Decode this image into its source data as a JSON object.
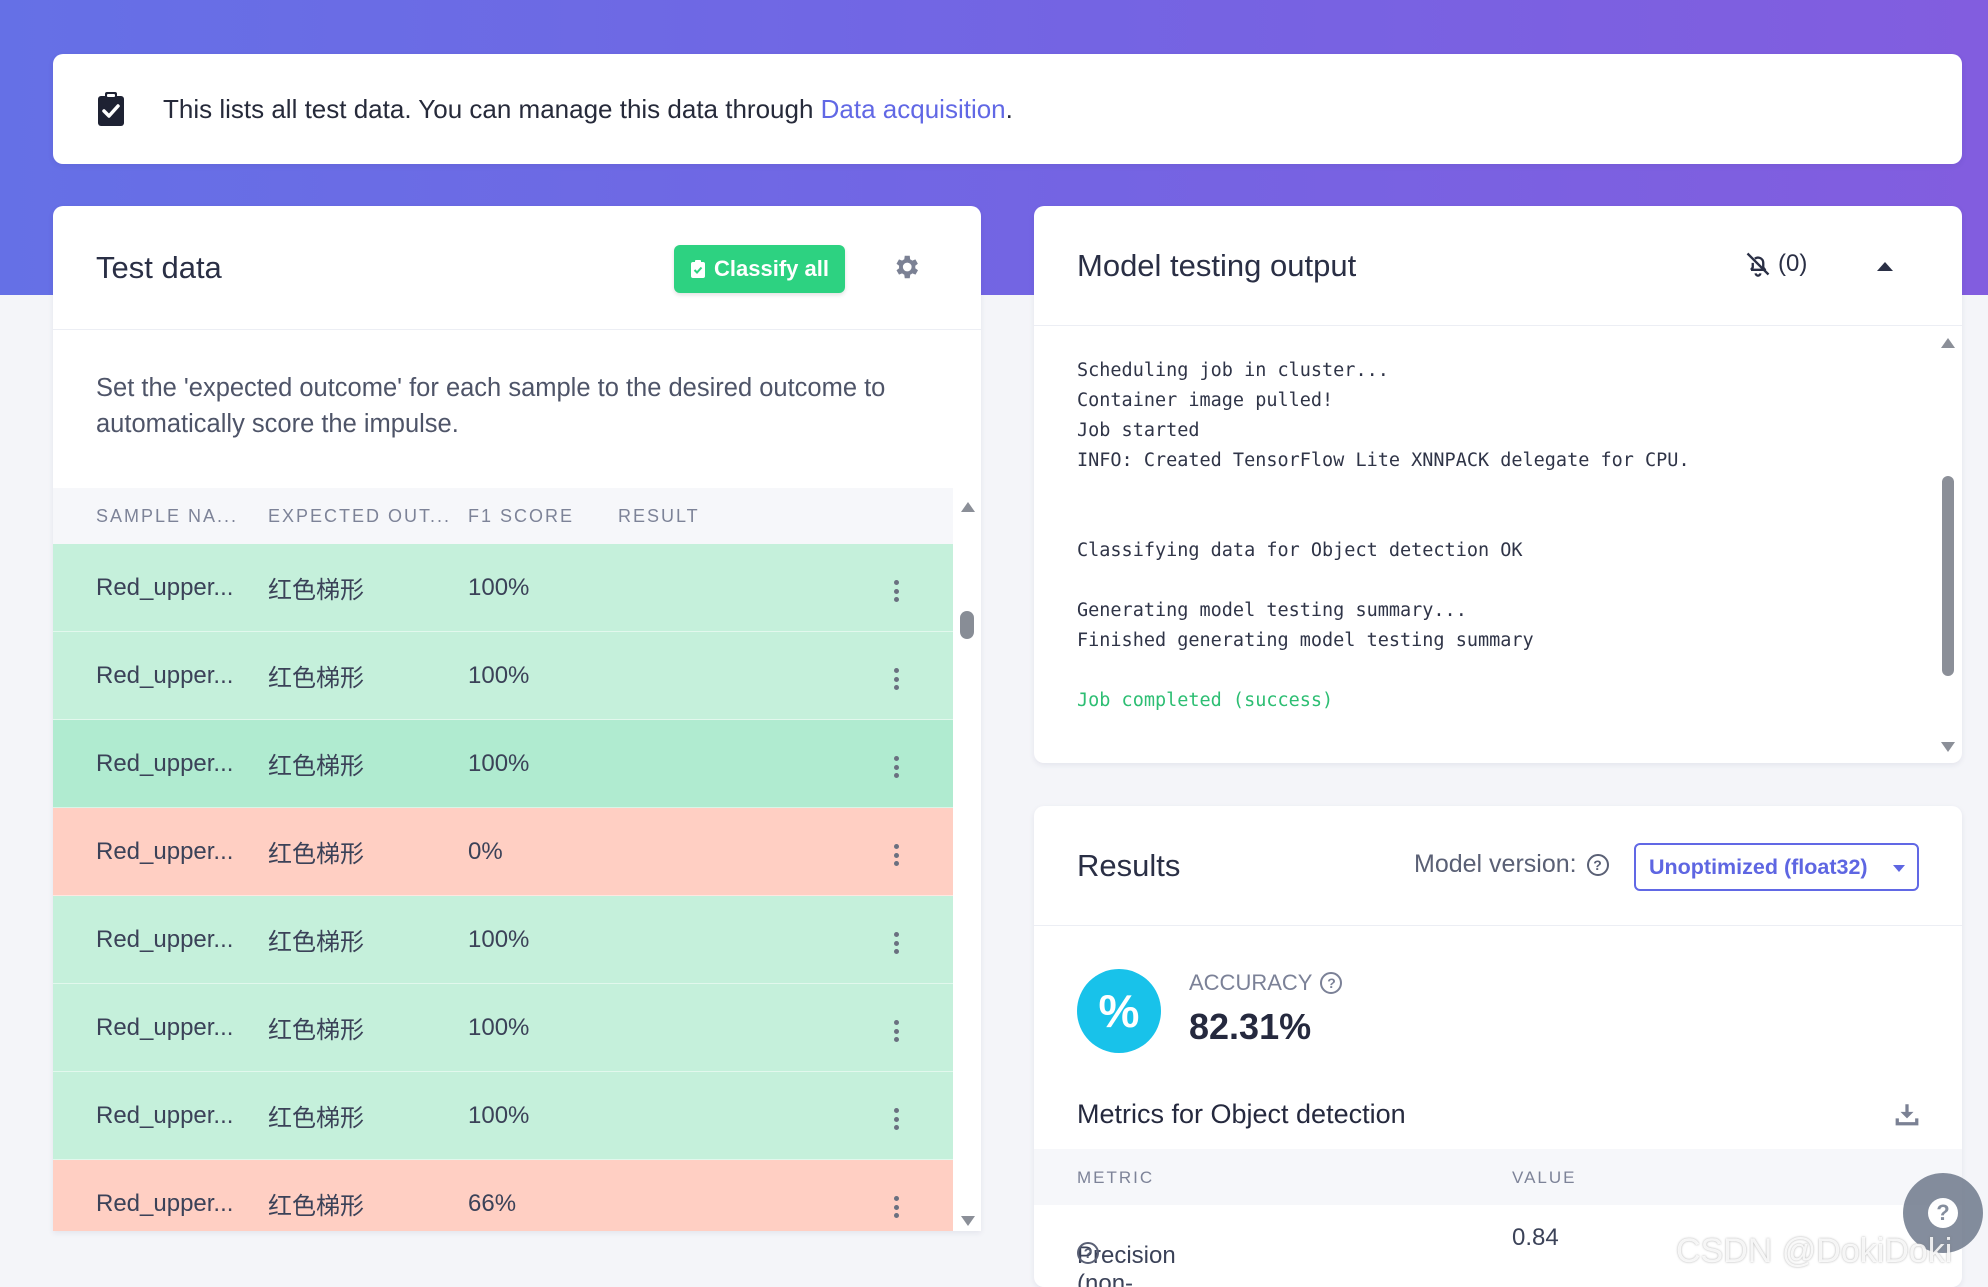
{
  "banner": {
    "text": "This lists all test data. You can manage this data through ",
    "link_label": "Data acquisition",
    "suffix": "."
  },
  "test_data": {
    "title": "Test data",
    "classify_label": "Classify all",
    "description": "Set the 'expected outcome' for each sample to the desired outcome to automatically score the impulse.",
    "columns": [
      "SAMPLE NA...",
      "EXPECTED OUT...",
      "F1 SCORE",
      "RESULT"
    ],
    "rows": [
      {
        "sample": "Red_upper...",
        "expected": "红色梯形",
        "f1": "100%",
        "status": "ok"
      },
      {
        "sample": "Red_upper...",
        "expected": "红色梯形",
        "f1": "100%",
        "status": "ok"
      },
      {
        "sample": "Red_upper...",
        "expected": "红色梯形",
        "f1": "100%",
        "status": "ok-hover"
      },
      {
        "sample": "Red_upper...",
        "expected": "红色梯形",
        "f1": "0%",
        "status": "bad"
      },
      {
        "sample": "Red_upper...",
        "expected": "红色梯形",
        "f1": "100%",
        "status": "ok"
      },
      {
        "sample": "Red_upper...",
        "expected": "红色梯形",
        "f1": "100%",
        "status": "ok"
      },
      {
        "sample": "Red_upper...",
        "expected": "红色梯形",
        "f1": "100%",
        "status": "ok"
      },
      {
        "sample": "Red_upper...",
        "expected": "红色梯形",
        "f1": "66%",
        "status": "bad"
      }
    ]
  },
  "model_output": {
    "title": "Model testing output",
    "notifications": "(0)",
    "log": [
      {
        "text": "Scheduling job in cluster...",
        "kind": "normal"
      },
      {
        "text": "Container image pulled!",
        "kind": "normal"
      },
      {
        "text": "Job started",
        "kind": "normal"
      },
      {
        "text": "INFO: Created TensorFlow Lite XNNPACK delegate for CPU.",
        "kind": "normal"
      },
      {
        "text": "",
        "kind": "normal"
      },
      {
        "text": "",
        "kind": "normal"
      },
      {
        "text": "Classifying data for Object detection OK",
        "kind": "normal"
      },
      {
        "text": "",
        "kind": "normal"
      },
      {
        "text": "Generating model testing summary...",
        "kind": "normal"
      },
      {
        "text": "Finished generating model testing summary",
        "kind": "normal"
      },
      {
        "text": "",
        "kind": "normal"
      },
      {
        "text": "Job completed (success)",
        "kind": "success"
      }
    ]
  },
  "results": {
    "title": "Results",
    "model_version_label": "Model version:",
    "model_version_value": "Unoptimized (float32)",
    "accuracy_label": "ACCURACY",
    "accuracy_value": "82.31%",
    "accuracy_icon": "%",
    "metrics_title": "Metrics for Object detection",
    "metric_columns": [
      "METRIC",
      "VALUE"
    ],
    "metrics": [
      {
        "name": "Precision (non-background)",
        "value": "0.84"
      }
    ]
  },
  "watermark": "CSDN @DokiDoki",
  "colors": {
    "accent": "#6168e5",
    "success": "#2dd281",
    "row_ok": "#c5f0db",
    "row_bad": "#ffcfc3",
    "accuracy_badge": "#18c2ea"
  }
}
